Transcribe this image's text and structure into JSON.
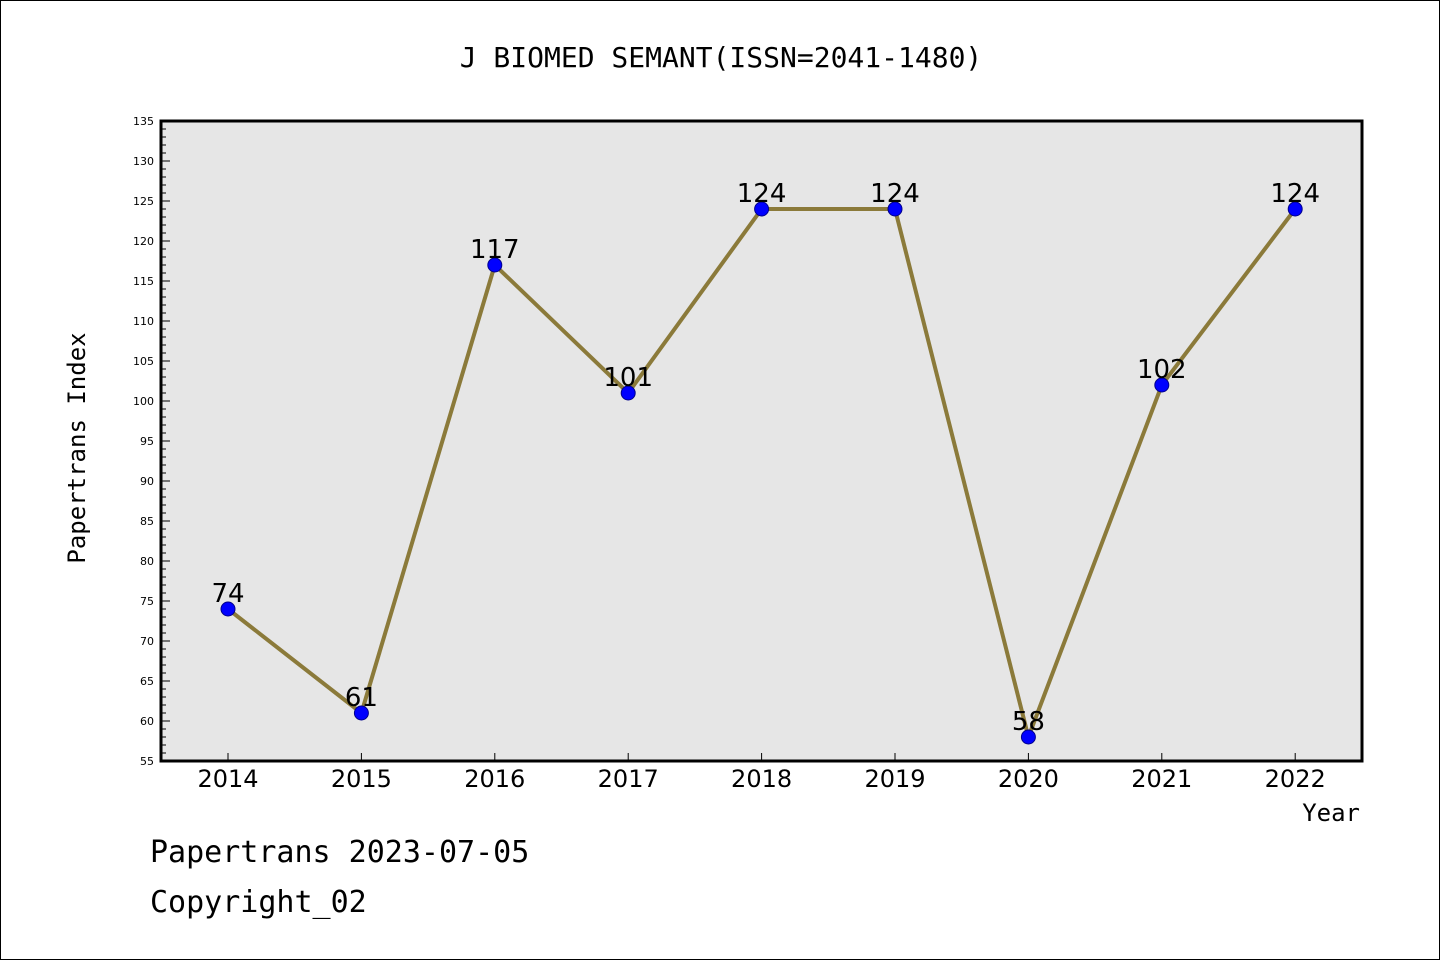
{
  "chart_data": {
    "type": "line",
    "title": "J BIOMED SEMANT(ISSN=2041-1480)",
    "xlabel": "Year",
    "ylabel": "Papertrans Index",
    "categories": [
      "2014",
      "2015",
      "2016",
      "2017",
      "2018",
      "2019",
      "2020",
      "2021",
      "2022"
    ],
    "series": [
      {
        "values": [
          74,
          61,
          117,
          101,
          124,
          124,
          58,
          102,
          124
        ]
      }
    ],
    "data_labels": [
      "74",
      "61",
      "117",
      "101",
      "124",
      "124",
      "58",
      "102",
      "124"
    ],
    "ylim": [
      55,
      135
    ],
    "y_ticks": [
      "55",
      "60",
      "65",
      "70",
      "75",
      "80",
      "85",
      "90",
      "95",
      "100",
      "105",
      "110",
      "115",
      "120",
      "125",
      "130",
      "135"
    ],
    "grid": false,
    "legend": "none",
    "colors": {
      "line": "#8b7a3a",
      "marker_fill": "#0000ff",
      "marker_edge": "#00008b",
      "plot_background": "#e6e6e6",
      "axes": "#000000"
    }
  },
  "footer": {
    "source_line": "Papertrans 2023-07-05",
    "copyright_line": "Copyright_02"
  }
}
